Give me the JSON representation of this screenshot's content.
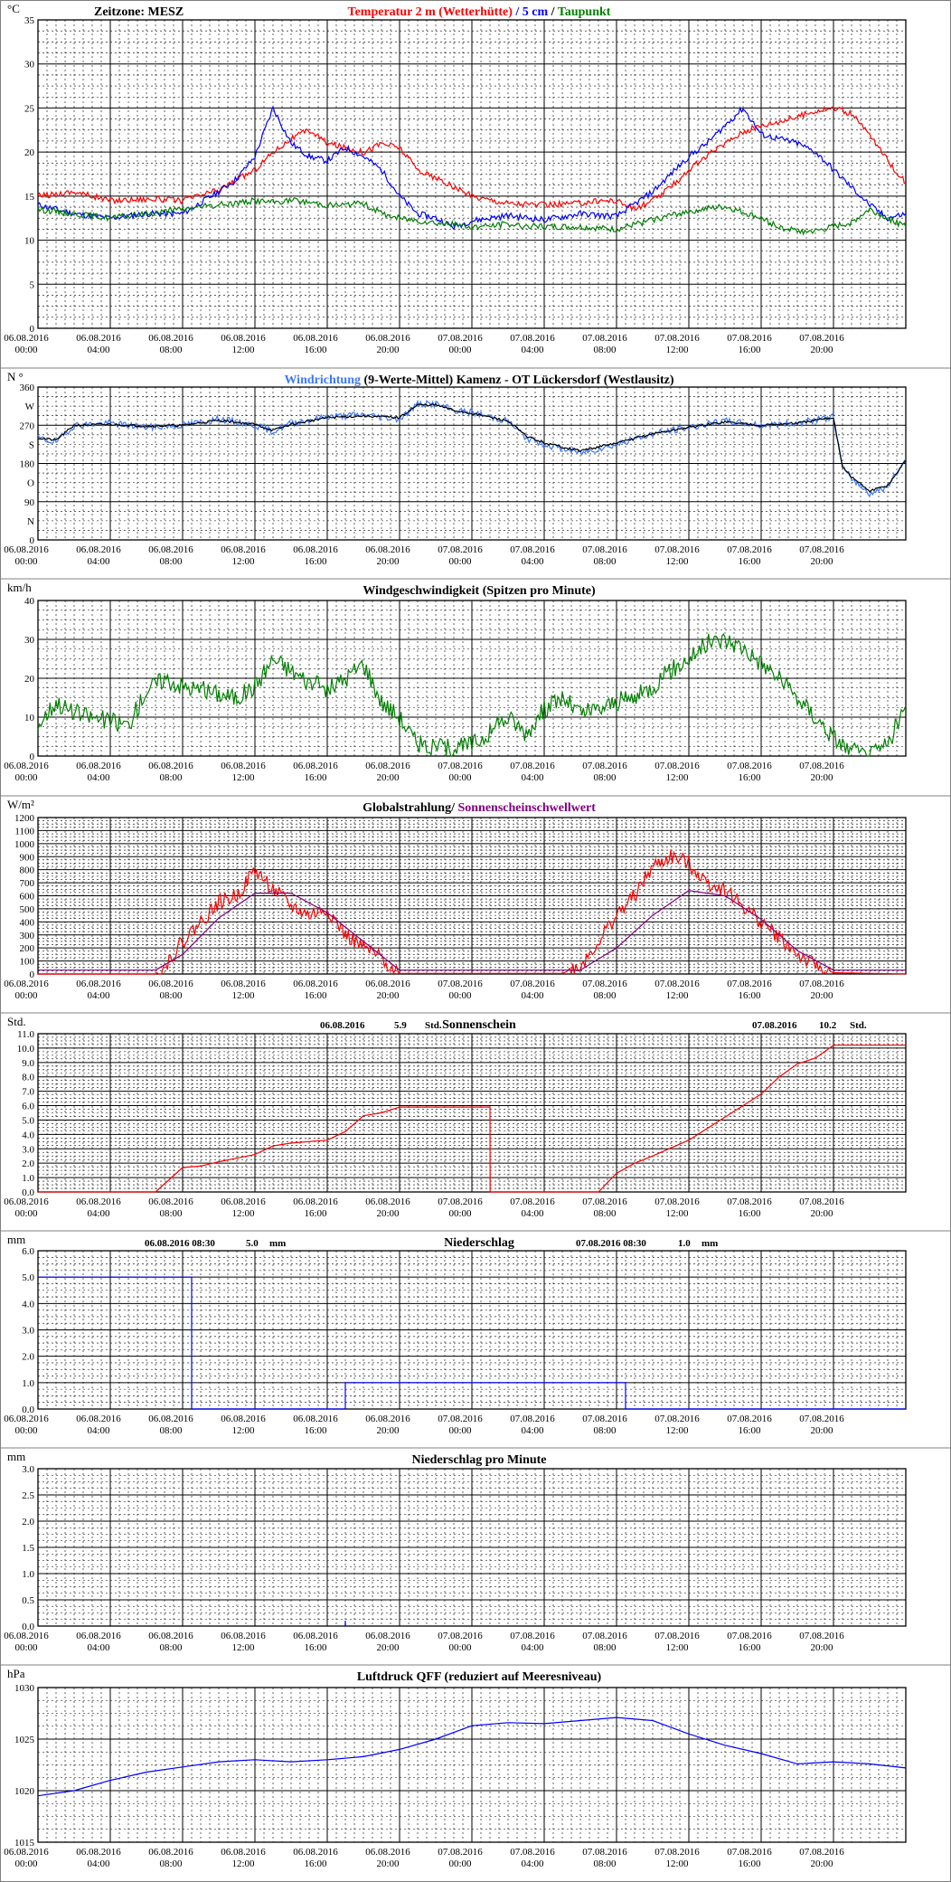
{
  "x_labels": [
    [
      "06.08.2016",
      "00:00"
    ],
    [
      "06.08.2016",
      "04:00"
    ],
    [
      "06.08.2016",
      "08:00"
    ],
    [
      "06.08.2016",
      "12:00"
    ],
    [
      "06.08.2016",
      "16:00"
    ],
    [
      "06.08.2016",
      "20:00"
    ],
    [
      "07.08.2016",
      "00:00"
    ],
    [
      "07.08.2016",
      "04:00"
    ],
    [
      "07.08.2016",
      "08:00"
    ],
    [
      "07.08.2016",
      "12:00"
    ],
    [
      "07.08.2016",
      "16:00"
    ],
    [
      "07.08.2016",
      "20:00"
    ]
  ],
  "colors": {
    "red": "#ff0000",
    "blue": "#0000ff",
    "lightblue": "#3c78ff",
    "green": "#008000",
    "black": "#000000",
    "purple": "#800080",
    "grid": "#000000",
    "frame": "#808080"
  },
  "chart_data": [
    {
      "id": "temperature",
      "type": "line",
      "unit": "°C",
      "timezone_label": "Zeitzone: MESZ",
      "title_parts": [
        {
          "text": "Temperatur 2 m (Wetterhütte)",
          "color": "#ff0000"
        },
        {
          "text": "  /  ",
          "color": "#0000ff"
        },
        {
          "text": "5 cm",
          "color": "#0000ff"
        },
        {
          "text": " / ",
          "color": "#000000"
        },
        {
          "text": "Taupunkt",
          "color": "#008000"
        }
      ],
      "ylim": [
        0,
        35
      ],
      "yticks": [
        0,
        5,
        10,
        15,
        20,
        25,
        30,
        35
      ],
      "grid": true,
      "series": [
        {
          "name": "Temperatur 2 m (Wetterhütte)",
          "color": "#ff0000",
          "x": [
            0,
            2,
            4,
            6,
            8,
            10,
            12,
            13,
            14,
            15,
            16,
            17,
            18,
            19,
            20,
            21,
            22,
            24,
            26,
            28,
            30,
            31,
            32,
            33,
            34,
            35,
            36,
            37,
            38,
            39,
            40,
            41,
            42,
            43,
            44,
            45,
            46,
            47,
            48
          ],
          "y": [
            15,
            15.5,
            14.5,
            14.7,
            14.5,
            15.7,
            18,
            20,
            21.5,
            22.5,
            21,
            20.5,
            20,
            21,
            20.5,
            18,
            17,
            15,
            14.2,
            14,
            14.2,
            14.5,
            14.5,
            13.5,
            14.5,
            16,
            18,
            19.5,
            21,
            22.3,
            23,
            23.5,
            24,
            24.7,
            25,
            24.3,
            22,
            19,
            16.5
          ]
        },
        {
          "name": "5 cm",
          "color": "#0000ff",
          "x": [
            0,
            2,
            4,
            6,
            8,
            10,
            11,
            12,
            13,
            14,
            15,
            16,
            17,
            18,
            19,
            20,
            21,
            22,
            23,
            24,
            26,
            28,
            30,
            32,
            34,
            35,
            36,
            37,
            38,
            39,
            40,
            41,
            42,
            43,
            44,
            45,
            46,
            47,
            48
          ],
          "y": [
            14,
            13,
            12.5,
            13,
            13,
            15.5,
            17,
            19.5,
            25,
            21,
            19.5,
            19,
            20.5,
            19.5,
            18,
            15,
            13,
            12.5,
            11.5,
            12.2,
            12.8,
            12.3,
            13,
            12.7,
            15.5,
            17.5,
            19.5,
            21,
            23,
            25,
            22,
            21.5,
            21,
            20,
            18,
            16,
            14,
            12.5,
            13
          ]
        },
        {
          "name": "Taupunkt",
          "color": "#008000",
          "x": [
            0,
            2,
            4,
            6,
            8,
            10,
            12,
            13,
            14,
            15,
            16,
            17,
            18,
            19,
            20,
            22,
            24,
            26,
            28,
            30,
            32,
            34,
            36,
            38,
            40,
            41,
            42,
            43,
            44,
            45,
            46,
            47,
            48
          ],
          "y": [
            13.5,
            13,
            12.5,
            13,
            13.5,
            14,
            14.5,
            14.3,
            14.5,
            14.3,
            14,
            14,
            14.2,
            13,
            12.5,
            12,
            11.5,
            11.8,
            11.5,
            11.5,
            11.2,
            12.3,
            13.3,
            13.8,
            12.5,
            11.5,
            11,
            11,
            11.5,
            12,
            13.5,
            12.5,
            11.5
          ]
        }
      ]
    },
    {
      "id": "wind_direction",
      "type": "line",
      "unit": "N °",
      "title_parts": [
        {
          "text": "Windrichtung",
          "color": "#3c78ff"
        },
        {
          "text": " (9-Werte-Mittel)",
          "color": "#000000"
        },
        {
          "text": "        Kamenz - OT Lückersdorf (Westlausitz)",
          "color": "#000000"
        }
      ],
      "ylim": [
        0,
        360
      ],
      "yticks": [
        0,
        90,
        180,
        270,
        360
      ],
      "ytick_labels": [
        {
          "value": 360,
          "text": "360"
        },
        {
          "value": 315,
          "text": "W"
        },
        {
          "value": 270,
          "text": "270"
        },
        {
          "value": 225,
          "text": "S"
        },
        {
          "value": 180,
          "text": "180"
        },
        {
          "value": 135,
          "text": "O"
        },
        {
          "value": 90,
          "text": "90"
        },
        {
          "value": 45,
          "text": "N"
        },
        {
          "value": 0,
          "text": "0"
        }
      ],
      "grid": true,
      "series": [
        {
          "name": "Windrichtung",
          "color": "#3c78ff",
          "x": [
            0,
            1,
            2,
            4,
            6,
            8,
            10,
            12,
            13,
            14,
            16,
            18,
            20,
            21,
            22,
            23,
            24,
            26,
            27,
            28,
            30,
            32,
            34,
            36,
            38,
            40,
            42,
            44,
            44.5,
            45,
            46,
            47,
            48
          ],
          "y": [
            240,
            230,
            270,
            275,
            265,
            270,
            285,
            270,
            255,
            275,
            290,
            295,
            285,
            320,
            320,
            305,
            300,
            280,
            240,
            225,
            205,
            225,
            250,
            265,
            280,
            270,
            275,
            290,
            170,
            145,
            110,
            125,
            190
          ]
        },
        {
          "name": "9-Werte-Mittel",
          "color": "#000000",
          "x": [
            0,
            1,
            2,
            4,
            6,
            8,
            10,
            12,
            13,
            14,
            16,
            18,
            20,
            21,
            22,
            23,
            24,
            26,
            27,
            28,
            30,
            32,
            34,
            36,
            38,
            40,
            42,
            44,
            44.5,
            45,
            46,
            47,
            48
          ],
          "y": [
            240,
            235,
            270,
            272,
            268,
            270,
            282,
            272,
            258,
            272,
            288,
            292,
            288,
            318,
            318,
            305,
            298,
            280,
            245,
            228,
            210,
            228,
            250,
            265,
            278,
            270,
            275,
            288,
            172,
            148,
            115,
            128,
            188
          ]
        }
      ]
    },
    {
      "id": "wind_speed",
      "type": "line",
      "unit": "km/h",
      "title_parts": [
        {
          "text": "Windgeschwindigkeit (Spitzen pro Minute)",
          "color": "#000000"
        }
      ],
      "ylim": [
        0,
        40
      ],
      "yticks": [
        0,
        10,
        20,
        30,
        40
      ],
      "grid": true,
      "series": [
        {
          "name": "Windgeschwindigkeit",
          "color": "#008000",
          "x": [
            0,
            1,
            2,
            3,
            4,
            5,
            6,
            7,
            8,
            9,
            10,
            11,
            12,
            13,
            14,
            15,
            16,
            17,
            18,
            19,
            20,
            21,
            22,
            23,
            24,
            25,
            26,
            27,
            28,
            29,
            30,
            31,
            32,
            33,
            34,
            35,
            36,
            37,
            38,
            39,
            40,
            41,
            42,
            43,
            44,
            45,
            46,
            47,
            48
          ],
          "y": [
            8,
            14,
            11,
            10,
            9,
            8,
            17,
            20,
            18,
            17,
            16,
            15,
            18,
            25,
            22,
            19,
            17,
            20,
            24,
            14,
            10,
            3,
            2,
            2,
            3,
            6,
            10,
            6,
            12,
            15,
            11,
            12,
            14,
            15,
            18,
            22,
            25,
            29,
            30,
            28,
            24,
            20,
            15,
            10,
            5,
            1,
            0,
            3,
            13
          ]
        }
      ]
    },
    {
      "id": "global_radiation",
      "type": "line",
      "unit": "W/m²",
      "title_parts": [
        {
          "text": "Globalstrahlung/ ",
          "color": "#000000"
        },
        {
          "text": "Sonnenscheinschwellwert",
          "color": "#800080"
        }
      ],
      "ylim": [
        0,
        1200
      ],
      "yticks": [
        0,
        100,
        200,
        300,
        400,
        500,
        600,
        700,
        800,
        900,
        1000,
        1100,
        1200
      ],
      "grid": true,
      "series": [
        {
          "name": "Globalstrahlung",
          "color": "#ff0000",
          "x": [
            0,
            6.5,
            7,
            8,
            9,
            10,
            11,
            12,
            13,
            14,
            15,
            16,
            17,
            18,
            19,
            20,
            29,
            30,
            31,
            32,
            33,
            34,
            35,
            36,
            37,
            38,
            39,
            40,
            41,
            42,
            43,
            44,
            48
          ],
          "y": [
            0,
            0,
            60,
            250,
            400,
            550,
            600,
            800,
            650,
            520,
            450,
            500,
            300,
            200,
            120,
            5,
            5,
            60,
            250,
            450,
            600,
            820,
            900,
            850,
            700,
            650,
            520,
            400,
            280,
            150,
            60,
            10,
            0
          ]
        },
        {
          "name": "Sonnenscheinschwellwert",
          "color": "#800080",
          "x": [
            0,
            6.5,
            8,
            10,
            12,
            14,
            16,
            18,
            20,
            30,
            32,
            34,
            36,
            38,
            40,
            42,
            44,
            48
          ],
          "y": [
            30,
            30,
            150,
            430,
            620,
            620,
            470,
            250,
            30,
            30,
            200,
            450,
            640,
            600,
            420,
            180,
            30,
            30
          ]
        }
      ]
    },
    {
      "id": "sunshine",
      "type": "line",
      "unit": "Std.",
      "title_parts": [
        {
          "text": "Sonnenschein",
          "color": "#000000"
        }
      ],
      "info": [
        {
          "text": "06.08.2016",
          "pos": "left"
        },
        {
          "text": "5.9",
          "pos": "left2"
        },
        {
          "text": "Std.",
          "pos": "left3"
        },
        {
          "text": "07.08.2016",
          "pos": "right"
        },
        {
          "text": "10.2",
          "pos": "right2"
        },
        {
          "text": "Std.",
          "pos": "right3"
        }
      ],
      "ylim": [
        0,
        11
      ],
      "yticks": [
        0,
        1,
        2,
        3,
        4,
        5,
        6,
        7,
        8,
        9,
        10,
        11
      ],
      "ytick_labels": [
        "0.0",
        "1.0",
        "2.0",
        "3.0",
        "4.0",
        "5.0",
        "6.0",
        "7.0",
        "8.0",
        "9.0",
        "10.0",
        "11.0"
      ],
      "grid": true,
      "series": [
        {
          "name": "Sonnenschein",
          "color": "#ff0000",
          "x": [
            0,
            6.5,
            8,
            9,
            10,
            12,
            13,
            14,
            16,
            17,
            18,
            19,
            20,
            21,
            22,
            25,
            25.01,
            31,
            32,
            33,
            34,
            36,
            38,
            40,
            41,
            42,
            43,
            44,
            48
          ],
          "y": [
            0,
            0,
            1.7,
            1.8,
            2.1,
            2.6,
            3.2,
            3.4,
            3.6,
            4.2,
            5.3,
            5.5,
            5.9,
            5.9,
            5.9,
            5.9,
            0,
            0,
            1.3,
            2.0,
            2.5,
            3.6,
            5.2,
            6.8,
            8.0,
            8.9,
            9.3,
            10.2,
            10.2
          ]
        }
      ]
    },
    {
      "id": "precipitation",
      "type": "line",
      "unit": "mm",
      "title_parts": [
        {
          "text": "Niederschlag",
          "color": "#000000"
        }
      ],
      "info": [
        {
          "text": "06.08.2016 08:30",
          "pos": "left"
        },
        {
          "text": "5.0",
          "pos": "left2"
        },
        {
          "text": "mm",
          "pos": "left3"
        },
        {
          "text": "07.08.2016 08:30",
          "pos": "right"
        },
        {
          "text": "1.0",
          "pos": "right2"
        },
        {
          "text": "mm",
          "pos": "right3"
        }
      ],
      "ylim": [
        0,
        6
      ],
      "yticks": [
        0,
        1,
        2,
        3,
        4,
        5,
        6
      ],
      "ytick_labels": [
        "0.0",
        "1.0",
        "2.0",
        "3.0",
        "4.0",
        "5.0",
        "6.0"
      ],
      "grid": true,
      "series": [
        {
          "name": "Niederschlag",
          "color": "#0000ff",
          "x": [
            0,
            8.5,
            8.5,
            17,
            17,
            32.5,
            32.5,
            48
          ],
          "y": [
            5,
            5,
            0,
            0,
            1,
            1,
            0,
            0
          ]
        }
      ]
    },
    {
      "id": "precipitation_per_minute",
      "type": "line",
      "unit": "mm",
      "title_parts": [
        {
          "text": "Niederschlag pro Minute",
          "color": "#000000"
        }
      ],
      "ylim": [
        0,
        3
      ],
      "yticks": [
        0,
        0.5,
        1,
        1.5,
        2,
        2.5,
        3
      ],
      "ytick_labels": [
        "0.0",
        "0.5",
        "1.0",
        "1.5",
        "2.0",
        "2.5",
        "3.0"
      ],
      "grid": true,
      "series": [
        {
          "name": "Niederschlag pro Minute",
          "color": "#0000ff",
          "x": [
            16.99,
            17,
            17.01
          ],
          "y": [
            0,
            0.1,
            0
          ]
        }
      ]
    },
    {
      "id": "pressure",
      "type": "line",
      "unit": "hPa",
      "title_parts": [
        {
          "text": "Luftdruck QFF (reduziert auf Meeresniveau)",
          "color": "#000000"
        }
      ],
      "ylim": [
        1015,
        1030
      ],
      "yticks": [
        1015,
        1020,
        1025,
        1030
      ],
      "grid": true,
      "series": [
        {
          "name": "Luftdruck QFF",
          "color": "#0000ff",
          "x": [
            0,
            2,
            4,
            6,
            8,
            10,
            12,
            14,
            16,
            18,
            20,
            22,
            24,
            26,
            28,
            30,
            32,
            34,
            36,
            38,
            40,
            42,
            44,
            46,
            48
          ],
          "y": [
            1019.5,
            1020,
            1021,
            1021.8,
            1022.3,
            1022.8,
            1023,
            1022.8,
            1023,
            1023.3,
            1024,
            1025,
            1026.3,
            1026.6,
            1026.5,
            1026.8,
            1027.1,
            1026.8,
            1025.5,
            1024.4,
            1023.6,
            1022.6,
            1022.8,
            1022.6,
            1022.2
          ]
        }
      ]
    }
  ]
}
